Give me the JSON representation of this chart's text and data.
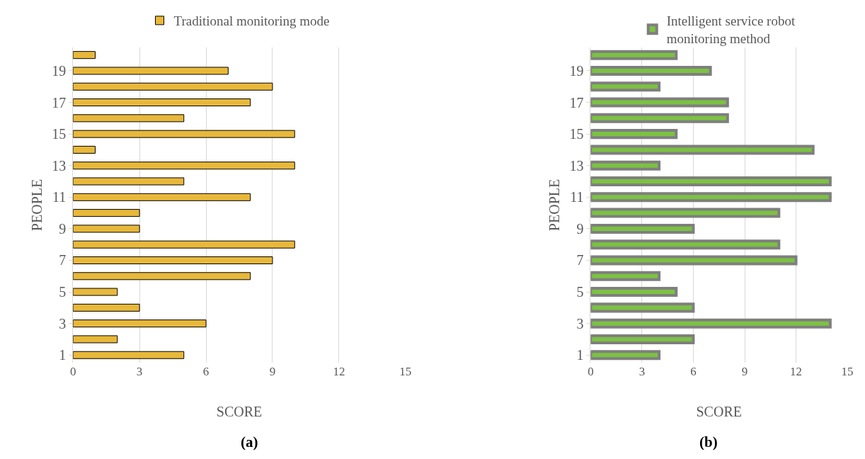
{
  "chart_data": [
    {
      "type": "bar",
      "orientation": "horizontal",
      "xlabel": "SCORE",
      "ylabel": "PEOPLE",
      "categories": [
        null,
        "19",
        null,
        "17",
        null,
        "15",
        null,
        "13",
        null,
        "11",
        null,
        "9",
        null,
        "7",
        null,
        "5",
        null,
        "3",
        null,
        "1"
      ],
      "series": [
        {
          "name": "Traditional monitoring mode",
          "color": "#e8b83a",
          "values": [
            1,
            7,
            9,
            8,
            5,
            10,
            1,
            10,
            5,
            8,
            3,
            3,
            10,
            9,
            8,
            2,
            3,
            6,
            2,
            5
          ]
        }
      ],
      "xlim": [
        0,
        15
      ],
      "xticks": [
        0,
        3,
        6,
        9,
        12,
        15
      ],
      "grid": "x",
      "legend": "top",
      "annotations": [
        "(a)"
      ]
    },
    {
      "type": "bar",
      "orientation": "horizontal",
      "xlabel": "SCORE",
      "ylabel": "PEOPLE",
      "categories": [
        null,
        "19",
        null,
        "17",
        null,
        "15",
        null,
        "13",
        null,
        "11",
        null,
        "9",
        null,
        "7",
        null,
        "5",
        null,
        "3",
        null,
        "1"
      ],
      "series": [
        {
          "name": "Intelligent service robot monitoring method",
          "color": "#7cc242",
          "values": [
            5,
            7,
            4,
            8,
            8,
            5,
            13,
            4,
            14,
            14,
            11,
            6,
            11,
            12,
            4,
            5,
            6,
            14,
            6,
            4
          ]
        }
      ],
      "xlim": [
        0,
        15
      ],
      "xticks": [
        0,
        3,
        6,
        9,
        12,
        15
      ],
      "grid": "x",
      "legend": "top",
      "annotations": [
        "(b)"
      ]
    }
  ]
}
